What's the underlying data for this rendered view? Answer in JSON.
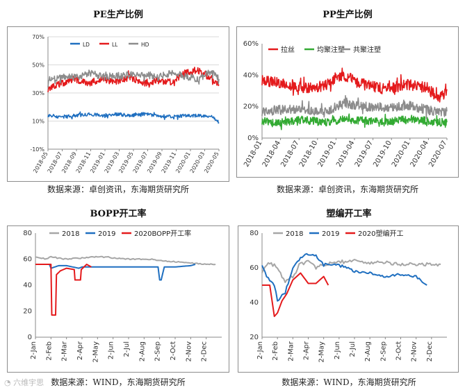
{
  "chart_data": [
    {
      "id": "pe",
      "type": "line",
      "title": "PE生产比例",
      "source": "数据来源：卓创资讯，东海期货研究所",
      "ylim": [
        -0.1,
        0.7
      ],
      "yticks": [
        "-10%",
        "10%",
        "30%",
        "50%",
        "70%"
      ],
      "ytick_values": [
        -0.1,
        0.1,
        0.3,
        0.5,
        0.7
      ],
      "xlim": [
        0,
        25
      ],
      "x_tick_labels": [
        "2018-05",
        "2018-07",
        "2018-09",
        "2018-11",
        "2019-01",
        "2019-03",
        "2019-05",
        "2019-07",
        "2019-09",
        "2019-11",
        "2020-01",
        "2020-03",
        "2020-05"
      ],
      "grid": true,
      "legend": "top",
      "series": [
        {
          "name": "LD",
          "color": "#1f6fc0",
          "x": [
            0,
            2,
            4,
            6,
            8,
            10,
            12,
            14,
            16,
            18,
            20,
            22,
            24,
            25
          ],
          "values": [
            0.14,
            0.13,
            0.14,
            0.15,
            0.14,
            0.15,
            0.14,
            0.15,
            0.14,
            0.13,
            0.14,
            0.14,
            0.13,
            0.09
          ]
        },
        {
          "name": "LL",
          "color": "#e41a1c",
          "x": [
            0,
            2,
            4,
            6,
            8,
            10,
            12,
            14,
            16,
            18,
            20,
            22,
            24,
            25
          ],
          "values": [
            0.33,
            0.37,
            0.4,
            0.37,
            0.4,
            0.38,
            0.41,
            0.37,
            0.39,
            0.38,
            0.44,
            0.46,
            0.4,
            0.36
          ]
        },
        {
          "name": "HD",
          "color": "#8c8c8c",
          "x": [
            0,
            2,
            4,
            6,
            8,
            10,
            12,
            14,
            16,
            18,
            20,
            22,
            24,
            25
          ],
          "values": [
            0.38,
            0.42,
            0.41,
            0.44,
            0.42,
            0.42,
            0.43,
            0.43,
            0.41,
            0.44,
            0.42,
            0.4,
            0.46,
            0.4
          ]
        }
      ]
    },
    {
      "id": "pp",
      "type": "line",
      "title": "PP生产比例",
      "source": "数据来源：卓创资讯，东海期货研究所",
      "ylim": [
        0,
        0.6
      ],
      "yticks": [
        "0%",
        "20%",
        "40%",
        "60%"
      ],
      "ytick_values": [
        0,
        0.2,
        0.4,
        0.6
      ],
      "xlim": [
        0,
        27
      ],
      "x_tick_labels": [
        "2018-01",
        "2018-04",
        "2018-07",
        "2018-10",
        "2019-01",
        "2019-04",
        "2019-07",
        "2019-10",
        "2020-01",
        "2020-04",
        "2020-07"
      ],
      "grid": false,
      "legend": "top",
      "series": [
        {
          "name": "拉丝",
          "color": "#e41a1c",
          "x": [
            0,
            3,
            6,
            9,
            12,
            15,
            18,
            21,
            24,
            26,
            27
          ],
          "values": [
            0.37,
            0.35,
            0.32,
            0.33,
            0.4,
            0.34,
            0.31,
            0.34,
            0.32,
            0.25,
            0.31
          ]
        },
        {
          "name": "均聚注塑",
          "color": "#33aa33",
          "x": [
            0,
            3,
            6,
            9,
            12,
            15,
            18,
            21,
            24,
            26,
            27
          ],
          "values": [
            0.11,
            0.1,
            0.12,
            0.1,
            0.12,
            0.11,
            0.1,
            0.12,
            0.11,
            0.1,
            0.1
          ]
        },
        {
          "name": "共聚注塑",
          "color": "#8c8c8c",
          "x": [
            0,
            3,
            6,
            9,
            12,
            15,
            18,
            21,
            24,
            26,
            27
          ],
          "values": [
            0.17,
            0.18,
            0.19,
            0.16,
            0.22,
            0.2,
            0.19,
            0.21,
            0.18,
            0.16,
            0.17
          ]
        }
      ]
    },
    {
      "id": "bopp",
      "type": "line",
      "title": "BOPP开工率",
      "source": "数据来源：WIND，东海期货研究所",
      "ylim": [
        0,
        80
      ],
      "yticks": [
        "0",
        "20",
        "40",
        "60",
        "80"
      ],
      "ytick_values": [
        0,
        20,
        40,
        60,
        80
      ],
      "xlim": [
        0,
        12
      ],
      "x_tick_labels": [
        "2-Jan",
        "2-Feb",
        "2-Mar",
        "2-Apr",
        "2-May",
        "2-Jun",
        "2-Jul",
        "2-Aug",
        "2-Sep",
        "2-Oct",
        "2-Nov",
        "2-Dec"
      ],
      "grid": false,
      "legend": "top",
      "series": [
        {
          "name": "2018",
          "color": "#a6a6a6",
          "x": [
            0,
            0.7,
            1,
            2,
            3,
            4,
            5,
            6,
            7,
            8,
            9,
            10,
            11,
            11.6
          ],
          "values": [
            62,
            60,
            62,
            60,
            61,
            62,
            61,
            60,
            60,
            59,
            58,
            57,
            56,
            56
          ]
        },
        {
          "name": "2019",
          "color": "#1f6fc0",
          "x": [
            0,
            0.9,
            1,
            1.5,
            2,
            2.8,
            3,
            4,
            5,
            6,
            7,
            7.9,
            8,
            8.1,
            8.3,
            9,
            10,
            10.3
          ],
          "values": [
            56,
            56,
            53,
            55,
            55,
            53,
            54,
            54,
            54,
            54,
            54,
            54,
            44,
            44,
            54,
            54,
            55,
            56
          ]
        },
        {
          "name": "2020BOPP开工率",
          "color": "#e41a1c",
          "x": [
            0,
            1,
            1.05,
            1.3,
            1.35,
            1.6,
            2,
            2.5,
            2.55,
            2.9,
            2.95,
            3.3,
            3.6
          ],
          "values": [
            56,
            56,
            17,
            17,
            48,
            51,
            53,
            52,
            44,
            44,
            52,
            56,
            54
          ]
        }
      ]
    },
    {
      "id": "sb",
      "type": "line",
      "title": "塑编开工率",
      "source": "数据来源：WIND，东海期货研究所",
      "ylim": [
        20,
        80
      ],
      "yticks": [
        "20",
        "40",
        "60",
        "80"
      ],
      "ytick_values": [
        20,
        40,
        60,
        80
      ],
      "xlim": [
        0,
        12
      ],
      "x_tick_labels": [
        "2-Jan",
        "2-Feb",
        "2-Mar",
        "2-Apr",
        "2-May",
        "2-Jun",
        "2-Jul",
        "2-Aug",
        "2-Sep",
        "2-Oct",
        "2-Nov",
        "2-Dec"
      ],
      "grid": false,
      "legend": "top",
      "series": [
        {
          "name": "2018",
          "color": "#a6a6a6",
          "x": [
            0,
            0.5,
            1,
            1.5,
            2,
            2.5,
            3,
            3.5,
            4,
            5,
            6,
            7,
            8,
            9,
            10,
            11,
            11.6
          ],
          "values": [
            58,
            63,
            60,
            52,
            55,
            62,
            64,
            60,
            62,
            63,
            64,
            63,
            63,
            62,
            62,
            62,
            62
          ]
        },
        {
          "name": "2019",
          "color": "#1f6fc0",
          "x": [
            0,
            0.3,
            0.8,
            1,
            1.5,
            2,
            2.5,
            3,
            3.5,
            4,
            5,
            6,
            7,
            8,
            9,
            10,
            10.7
          ],
          "values": [
            62,
            55,
            50,
            41,
            46,
            60,
            66,
            68,
            67,
            62,
            62,
            58,
            57,
            55,
            56,
            55,
            50
          ]
        },
        {
          "name": "2020塑编开工",
          "color": "#e41a1c",
          "x": [
            0,
            0.5,
            0.8,
            1,
            1.3,
            1.6,
            2,
            2.5,
            3,
            3.5,
            4,
            4.3
          ],
          "values": [
            50,
            50,
            32,
            34,
            41,
            45,
            53,
            57,
            51,
            51,
            55,
            50
          ]
        }
      ]
    }
  ],
  "watermark": "六维宇思"
}
